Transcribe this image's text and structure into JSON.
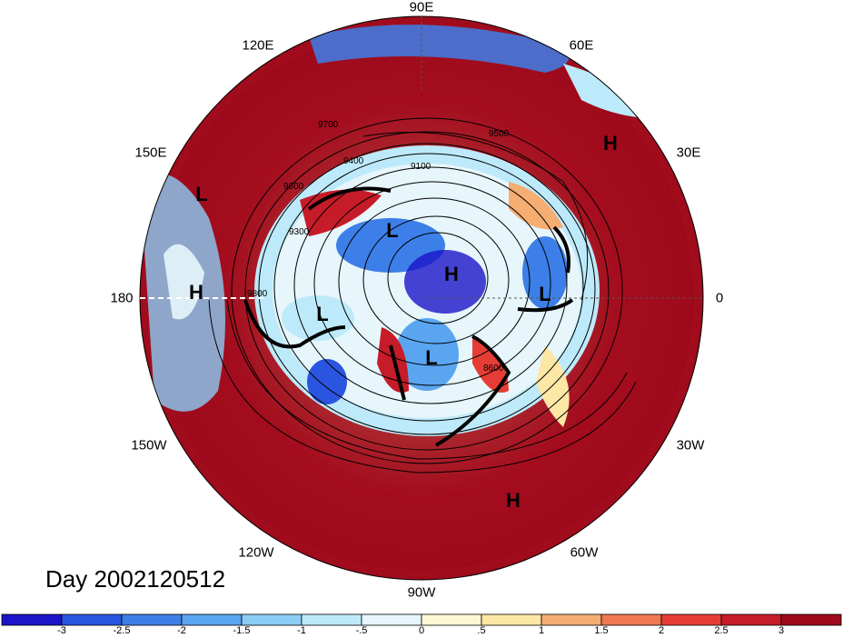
{
  "title": "Day 2002120512",
  "longitude_labels": [
    "90E",
    "60E",
    "30E",
    "0",
    "30W",
    "60W",
    "90W",
    "120W",
    "150W",
    "180",
    "150E",
    "120E"
  ],
  "pressure_systems": [
    "H",
    "H",
    "H",
    "H",
    "L",
    "L",
    "L",
    "L",
    "L"
  ],
  "contour_labels": [
    "9100",
    "9300",
    "9400",
    "9500",
    "9600",
    "9700",
    "8600",
    "9800"
  ],
  "colorbar": {
    "ticks": [
      "-3",
      "-2.5",
      "-2",
      "-1.5",
      "-1",
      "-.5",
      "0",
      ".5",
      "1",
      "1.5",
      "2",
      "2.5",
      "3"
    ],
    "colors": [
      "#1c15c8",
      "#2a55e0",
      "#3d7fe8",
      "#5aa5f0",
      "#8acdf5",
      "#bdeafa",
      "#e6f6fb",
      "#fff8d6",
      "#fde7a5",
      "#f6ad72",
      "#ef7853",
      "#e53d35",
      "#c61b28",
      "#9e0b1c"
    ]
  }
}
